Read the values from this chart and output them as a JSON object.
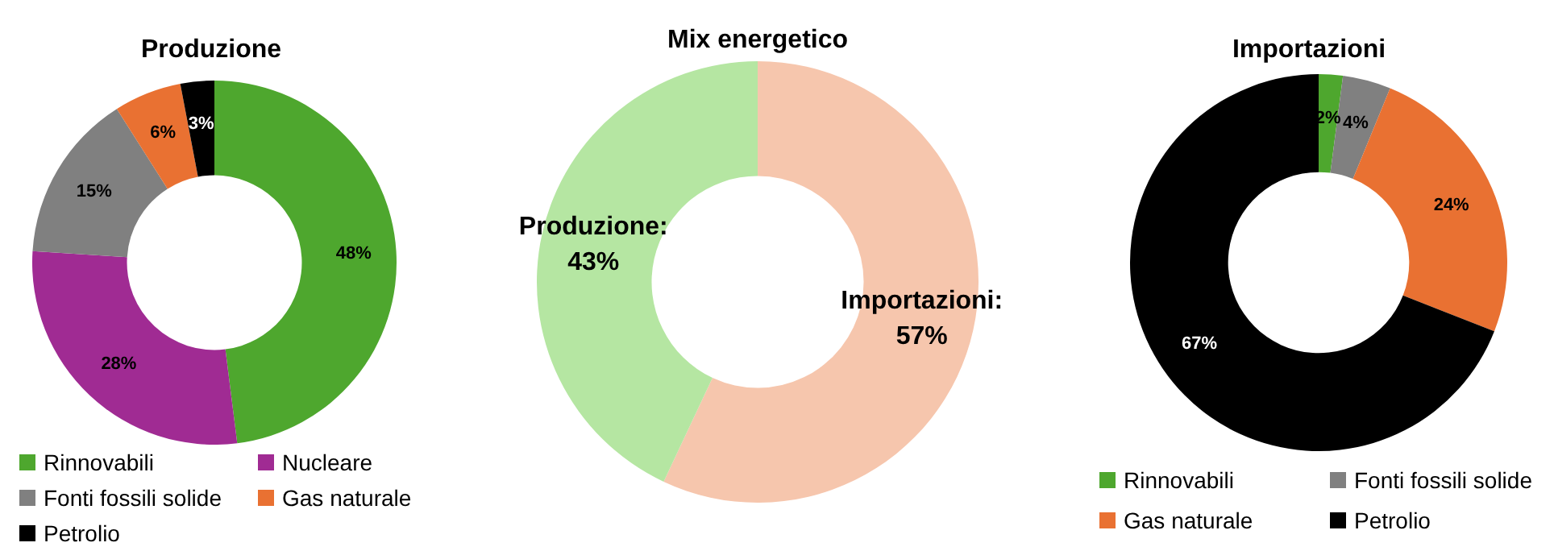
{
  "chart_data": [
    {
      "type": "donut",
      "title": "Produzione",
      "categories": [
        "Rinnovabili",
        "Nucleare",
        "Fonti fossili solide",
        "Gas naturale",
        "Petrolio"
      ],
      "values": [
        48,
        28,
        15,
        6,
        3
      ],
      "colors": [
        "#4ea72e",
        "#a02b93",
        "#808080",
        "#e97132",
        "#000000"
      ],
      "value_labels": [
        "48%",
        "28%",
        "15%",
        "6%",
        "3%"
      ],
      "legend": "bottom"
    },
    {
      "type": "donut",
      "title": "Mix energetico",
      "categories": [
        null,
        null
      ],
      "values": [
        57,
        43
      ],
      "colors": [
        "#f6c6ad",
        "#b5e6a2"
      ],
      "value_labels": [
        "Importazioni:\n57%",
        "Produzione:\n43%"
      ],
      "legend": false
    },
    {
      "type": "donut",
      "title": "Importazioni",
      "categories": [
        "Rinnovabili",
        "Fonti fossili solide",
        "Gas naturale",
        "Petrolio"
      ],
      "values": [
        2,
        4,
        24,
        67
      ],
      "colors": [
        "#4ea72e",
        "#808080",
        "#e97132",
        "#000000"
      ],
      "value_labels": [
        "2%",
        "4%",
        "24%",
        "67%"
      ],
      "legend": "bottom"
    }
  ]
}
